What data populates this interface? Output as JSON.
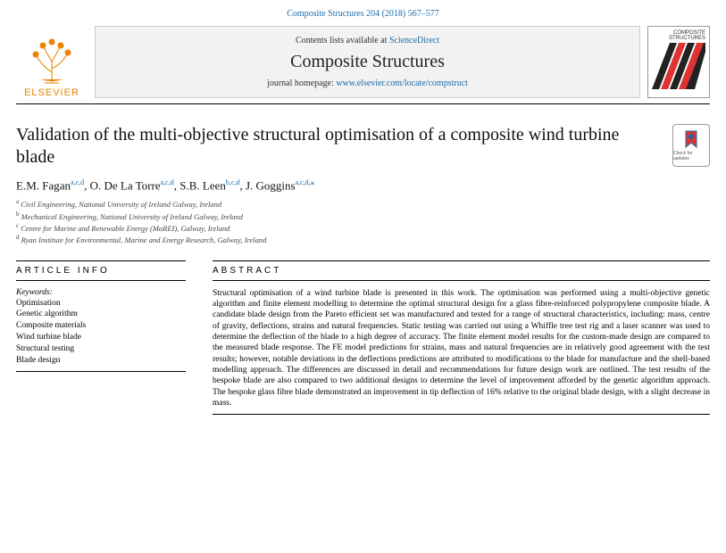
{
  "citation": "Composite Structures 204 (2018) 567–577",
  "header": {
    "contents_text": "Contents lists available at ",
    "contents_link": "ScienceDirect",
    "journal_name": "Composite Structures",
    "homepage_label": "journal homepage: ",
    "homepage_url": "www.elsevier.com/locate/compstruct",
    "publisher_label": "ELSEVIER",
    "cover_title_line1": "COMPOSITE",
    "cover_title_line2": "STRUCTURES"
  },
  "title": "Validation of the multi-objective structural optimisation of a composite wind turbine blade",
  "updates_label": "Check for updates",
  "authors": [
    {
      "name": "E.M. Fagan",
      "affil": "a,c,d"
    },
    {
      "name": "O. De La Torre",
      "affil": "a,c,d"
    },
    {
      "name": "S.B. Leen",
      "affil": "b,c,d"
    },
    {
      "name": "J. Goggins",
      "affil": "a,c,d,",
      "corr": true
    }
  ],
  "affiliations": [
    {
      "key": "a",
      "text": "Civil Engineering, National University of Ireland Galway, Ireland"
    },
    {
      "key": "b",
      "text": "Mechanical Engineering, National University of Ireland Galway, Ireland"
    },
    {
      "key": "c",
      "text": "Centre for Marine and Renewable Energy (MaREI), Galway, Ireland"
    },
    {
      "key": "d",
      "text": "Ryan Institute for Environmental, Marine and Energy Research, Galway, Ireland"
    }
  ],
  "article_info_header": "ARTICLE INFO",
  "abstract_header": "ABSTRACT",
  "keywords_label": "Keywords:",
  "keywords": [
    "Optimisation",
    "Genetic algorithm",
    "Composite materials",
    "Wind turbine blade",
    "Structural testing",
    "Blade design"
  ],
  "abstract": "Structural optimisation of a wind turbine blade is presented in this work. The optimisation was performed using a multi-objective genetic algorithm and finite element modelling to determine the optimal structural design for a glass fibre-reinforced polypropylene composite blade. A candidate blade design from the Pareto efficient set was manufactured and tested for a range of structural characteristics, including: mass, centre of gravity, deflections, strains and natural frequencies. Static testing was carried out using a Whiffle tree test rig and a laser scanner was used to determine the deflection of the blade to a high degree of accuracy. The finite element model results for the custom-made design are compared to the measured blade response. The FE model predictions for strains, mass and natural frequencies are in relatively good agreement with the test results; however, notable deviations in the deflections predictions are attributed to modifications to the blade for manufacture and the shell-based modelling approach. The differences are discussed in detail and recommendations for future design work are outlined. The test results of the bespoke blade are also compared to two additional designs to determine the level of improvement afforded by the genetic algorithm approach. The bespoke glass fibre blade demonstrated an improvement in tip deflection of 16% relative to the original blade design, with a slight decrease in mass.",
  "colors": {
    "link": "#1a6ba8",
    "elsevier_orange": "#e98300"
  }
}
